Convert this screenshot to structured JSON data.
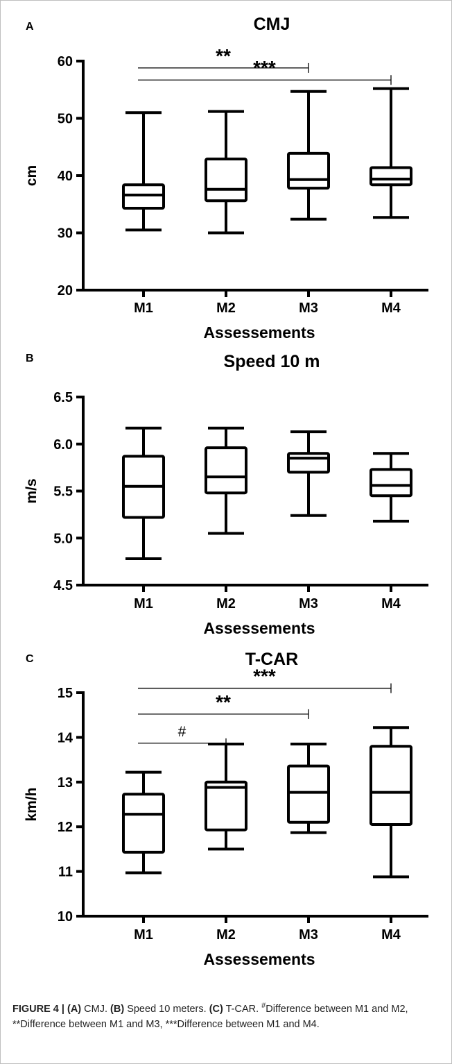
{
  "chart_data": [
    {
      "type": "box",
      "panel_label": "A",
      "title": "CMJ",
      "xlabel": "Assessements",
      "ylabel": "cm",
      "ylim": [
        20,
        60
      ],
      "yticks": [
        "20",
        "30",
        "40",
        "50",
        "60"
      ],
      "categories": [
        "M1",
        "M2",
        "M3",
        "M4"
      ],
      "boxes": [
        {
          "min": 30.5,
          "q1": 34.3,
          "median": 36.6,
          "q3": 38.4,
          "max": 51.0
        },
        {
          "min": 30.0,
          "q1": 35.6,
          "median": 37.6,
          "q3": 42.9,
          "max": 51.2
        },
        {
          "min": 32.4,
          "q1": 37.8,
          "median": 39.3,
          "q3": 43.9,
          "max": 54.7
        },
        {
          "min": 32.7,
          "q1": 38.4,
          "median": 39.4,
          "q3": 41.4,
          "max": 55.2
        }
      ],
      "significance": [
        {
          "from": "M1",
          "to": "M3",
          "label": "**",
          "y": 58.8
        },
        {
          "from": "M1",
          "to": "M4",
          "label": "***",
          "y": 56.7
        }
      ]
    },
    {
      "type": "box",
      "panel_label": "B",
      "title": "Speed 10 m",
      "xlabel": "Assessements",
      "ylabel": "m/s",
      "ylim": [
        4.5,
        6.5
      ],
      "yticks": [
        "4.5",
        "5.0",
        "5.5",
        "6.0",
        "6.5"
      ],
      "categories": [
        "M1",
        "M2",
        "M3",
        "M4"
      ],
      "boxes": [
        {
          "min": 4.78,
          "q1": 5.22,
          "median": 5.55,
          "q3": 5.87,
          "max": 6.17
        },
        {
          "min": 5.05,
          "q1": 5.48,
          "median": 5.65,
          "q3": 5.96,
          "max": 6.17
        },
        {
          "min": 5.24,
          "q1": 5.7,
          "median": 5.85,
          "q3": 5.9,
          "max": 6.13
        },
        {
          "min": 5.18,
          "q1": 5.45,
          "median": 5.56,
          "q3": 5.73,
          "max": 5.9
        }
      ],
      "significance": []
    },
    {
      "type": "box",
      "panel_label": "C",
      "title": "T-CAR",
      "xlabel": "Assessements",
      "ylabel": "km/h",
      "ylim": [
        10,
        15
      ],
      "yticks": [
        "10",
        "11",
        "12",
        "13",
        "14",
        "15"
      ],
      "categories": [
        "M1",
        "M2",
        "M3",
        "M4"
      ],
      "boxes": [
        {
          "min": 10.97,
          "q1": 11.43,
          "median": 12.28,
          "q3": 12.73,
          "max": 13.22
        },
        {
          "min": 11.5,
          "q1": 11.93,
          "median": 12.88,
          "q3": 13.0,
          "max": 13.85
        },
        {
          "min": 11.87,
          "q1": 12.1,
          "median": 12.77,
          "q3": 13.36,
          "max": 13.85
        },
        {
          "min": 10.88,
          "q1": 12.05,
          "median": 12.77,
          "q3": 13.8,
          "max": 14.22
        }
      ],
      "significance": [
        {
          "from": "M1",
          "to": "M4",
          "label": "***",
          "y": 15.1
        },
        {
          "from": "M1",
          "to": "M3",
          "label": "**",
          "y": 14.52
        },
        {
          "from": "M1",
          "to": "M2",
          "label": "#",
          "y": 13.87
        }
      ]
    }
  ],
  "caption": {
    "lead": "FIGURE 4 | ",
    "a_label": "(A)",
    "a_text": " CMJ. ",
    "b_label": "(B)",
    "b_text": " Speed 10 meters. ",
    "c_label": "(C)",
    "c_text": " T-CAR. ",
    "hash": "#",
    "rest": "Difference between M1 and M2, **Difference between M1 and M3, ***Difference between M1 and M4."
  }
}
